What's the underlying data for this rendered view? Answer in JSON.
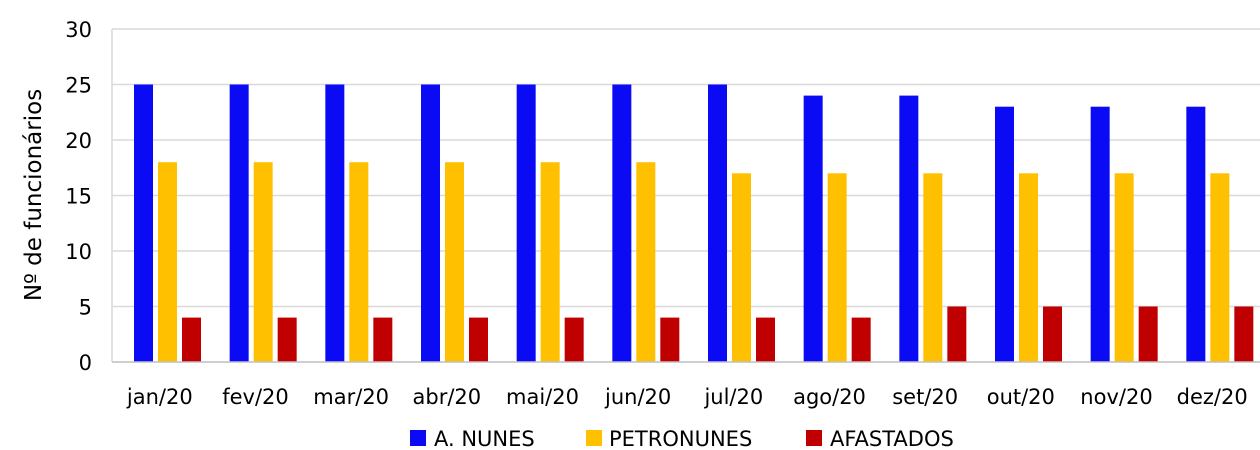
{
  "chart_data": {
    "type": "bar",
    "title": "",
    "xlabel": "",
    "ylabel": "Nº de funcionários",
    "ylim": [
      0,
      30
    ],
    "yticks": [
      0,
      5,
      10,
      15,
      20,
      25,
      30
    ],
    "grid": true,
    "legend_position": "bottom",
    "categories": [
      "jan/20",
      "fev/20",
      "mar/20",
      "abr/20",
      "mai/20",
      "jun/20",
      "jul/20",
      "ago/20",
      "set/20",
      "out/20",
      "nov/20",
      "dez/20"
    ],
    "series": [
      {
        "name": "A. NUNES",
        "color": "#0a0af5",
        "values": [
          25,
          25,
          25,
          25,
          25,
          25,
          25,
          24,
          24,
          23,
          23,
          23
        ]
      },
      {
        "name": "PETRONUNES",
        "color": "#ffc000",
        "values": [
          18,
          18,
          18,
          18,
          18,
          18,
          17,
          17,
          17,
          17,
          17,
          17
        ]
      },
      {
        "name": "AFASTADOS",
        "color": "#c00000",
        "values": [
          4,
          4,
          4,
          4,
          4,
          4,
          4,
          4,
          5,
          5,
          5,
          5
        ]
      }
    ]
  }
}
